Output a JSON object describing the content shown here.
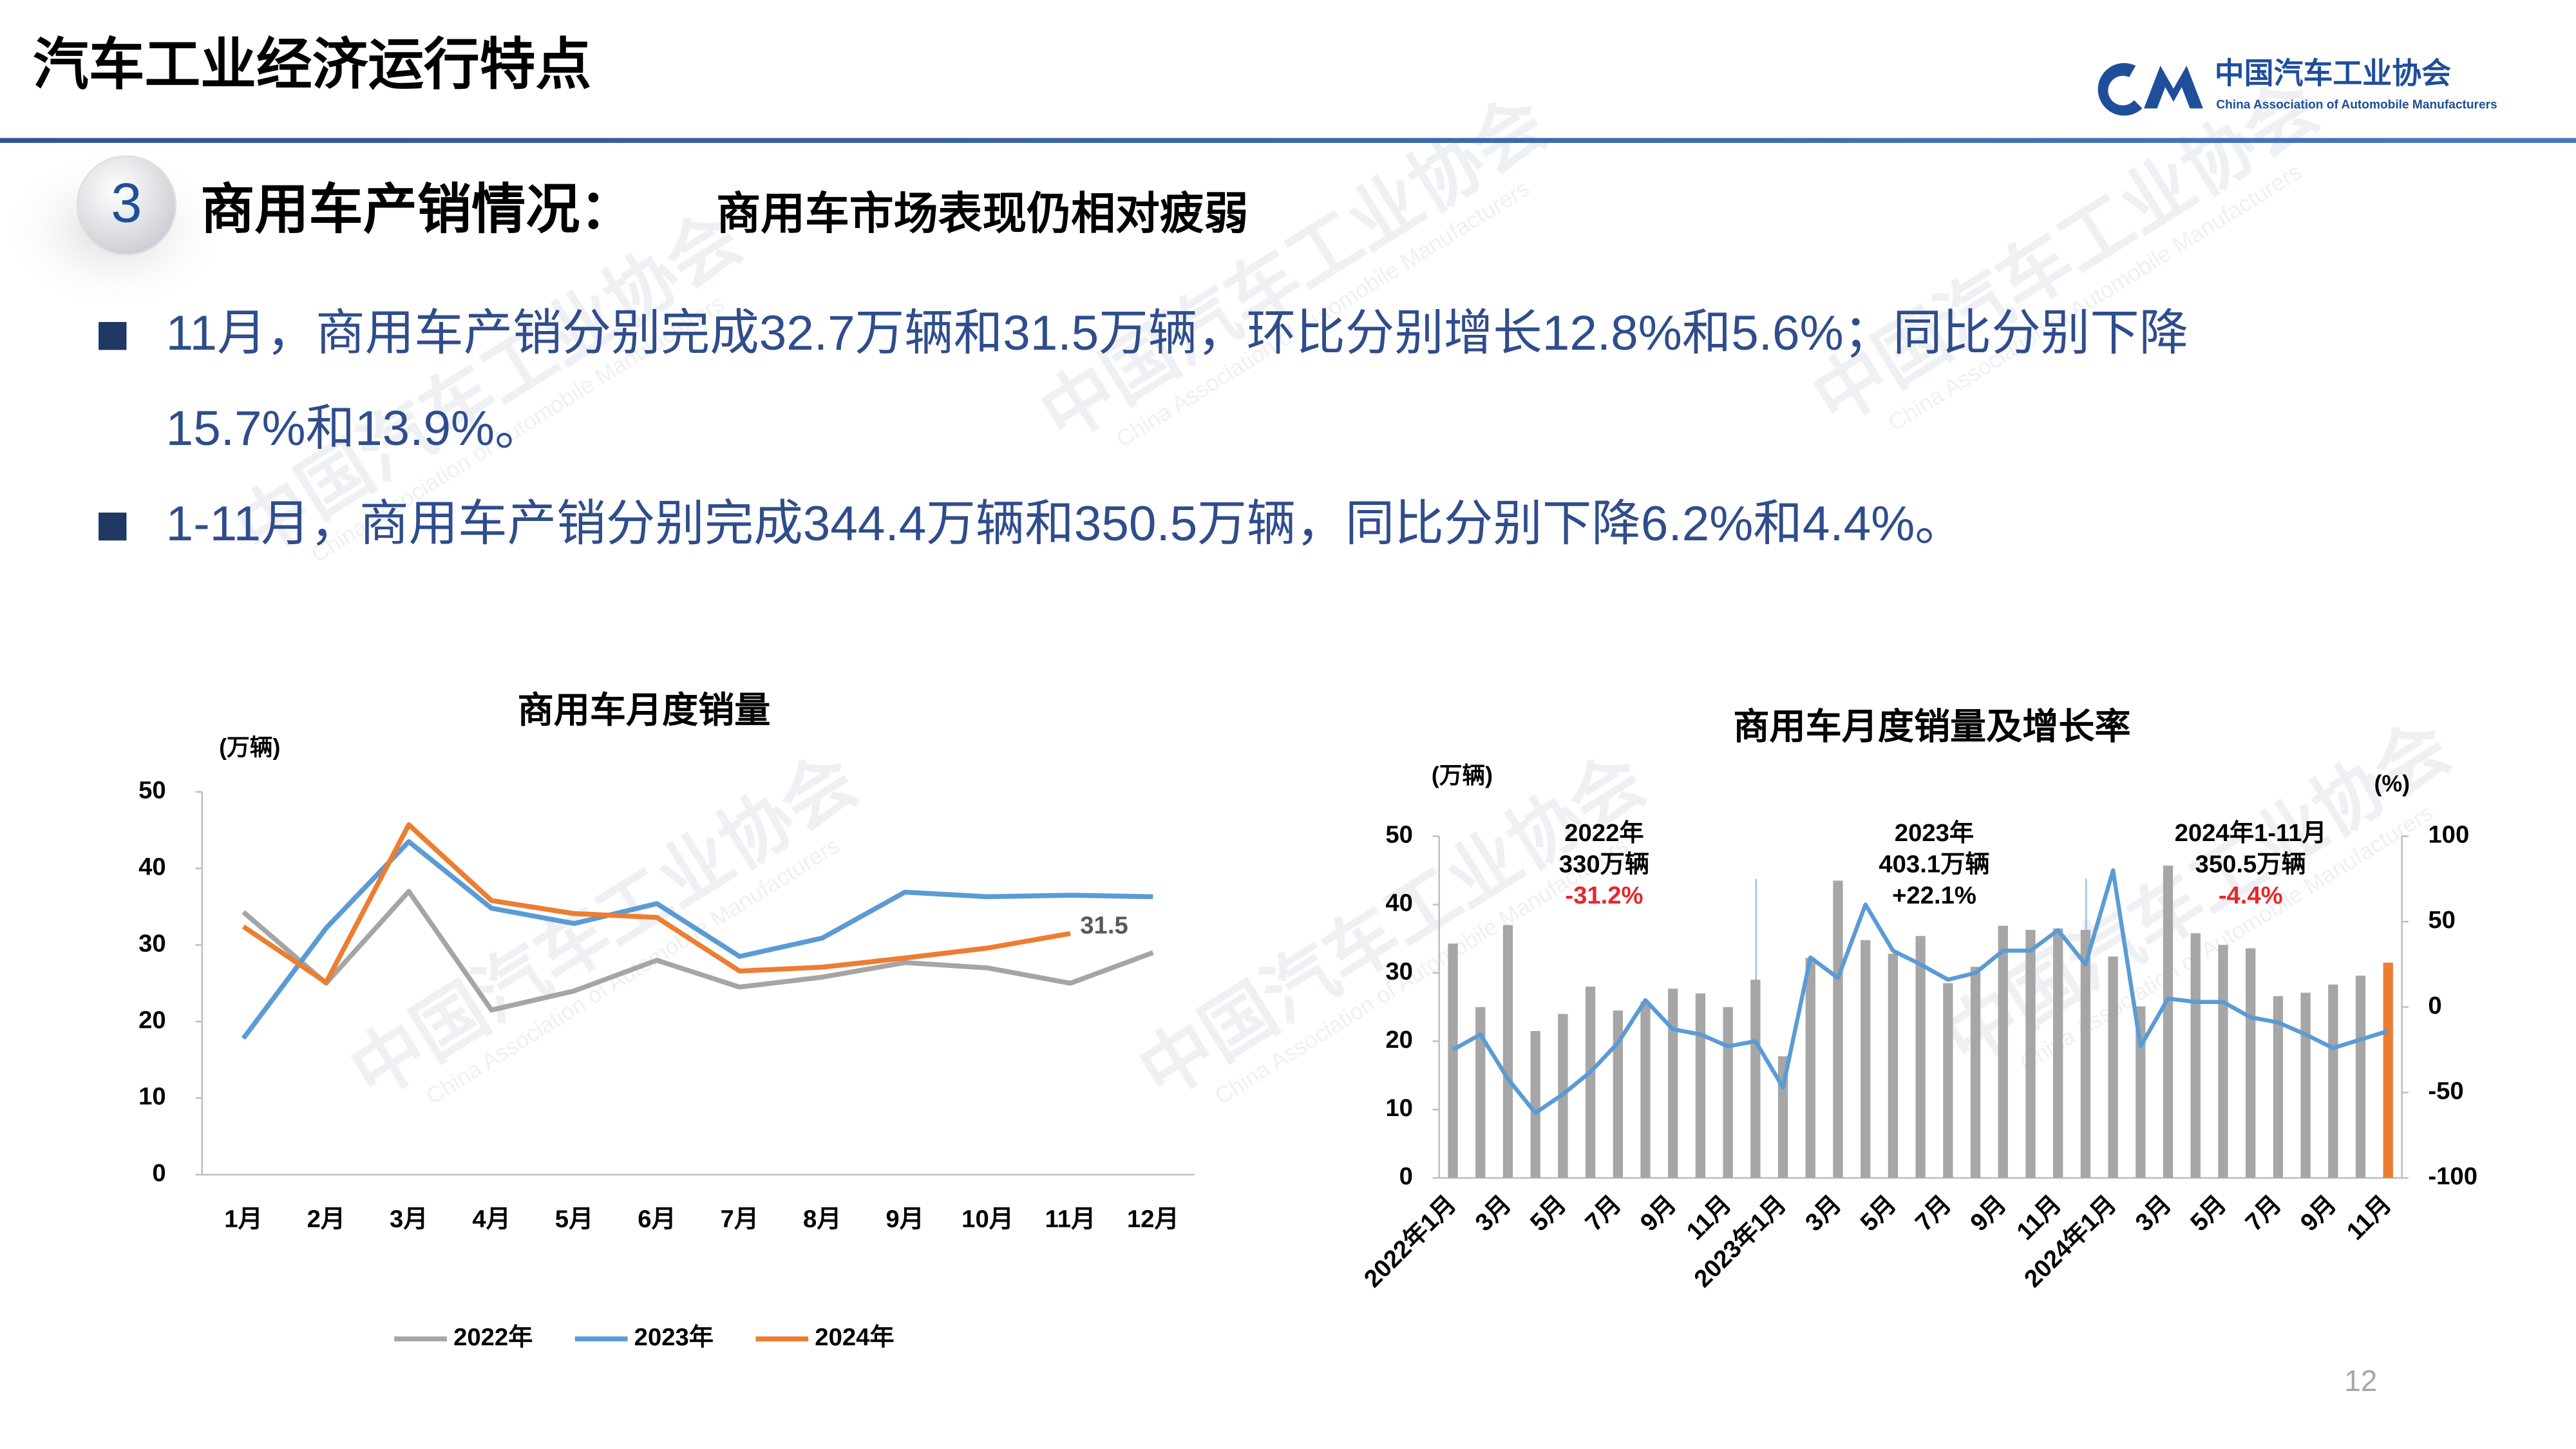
{
  "header": {
    "title": "汽车工业经济运行特点",
    "logo_cn": "中国汽车工业协会",
    "logo_en": "China Association of Automobile Manufacturers"
  },
  "section": {
    "number": "3",
    "title": "商用车产销情况：",
    "subtitle": "商用车市场表现仍相对疲弱"
  },
  "bullets": [
    {
      "lines": [
        "11月，商用车产销分别完成32.7万辆和31.5万辆，环比分别增长12.8%和5.6%；同比分别下降",
        "15.7%和13.9%。"
      ]
    },
    {
      "lines": [
        "1-11月，商用车产销分别完成344.4万辆和350.5万辆，同比分别下降6.2%和4.4%。"
      ]
    }
  ],
  "page_number": "12",
  "chart_data": [
    {
      "type": "line",
      "title": "商用车月度销量",
      "y_label": "(万辆)",
      "categories": [
        "1月",
        "2月",
        "3月",
        "4月",
        "5月",
        "6月",
        "7月",
        "8月",
        "9月",
        "10月",
        "11月",
        "12月"
      ],
      "series": [
        {
          "name": "2022年",
          "color": "#a5a5a5",
          "values": [
            34.3,
            25,
            37,
            21.5,
            24,
            28,
            24.5,
            25.8,
            27.7,
            27,
            25,
            29
          ]
        },
        {
          "name": "2023年",
          "color": "#5b9bd5",
          "values": [
            17.8,
            32.2,
            43.5,
            34.8,
            32.8,
            35.4,
            28.5,
            30.9,
            36.9,
            36.3,
            36.5,
            36.3
          ]
        },
        {
          "name": "2024年",
          "color": "#ed7d31",
          "label_last": true,
          "values": [
            32.4,
            25.1,
            45.7,
            35.8,
            34.1,
            33.6,
            26.6,
            27.1,
            28.3,
            29.6,
            31.5,
            null
          ]
        }
      ],
      "ylim": [
        0,
        50
      ],
      "yticks": [
        0,
        10,
        20,
        30,
        40,
        50
      ],
      "grid": false,
      "legend": "bottom"
    },
    {
      "type": "bar",
      "title": "商用车月度销量及增长率",
      "y_label": "(万辆)",
      "y2_label": "(%)",
      "categories": [
        "2022年1月",
        null,
        "3月",
        null,
        "5月",
        null,
        "7月",
        null,
        "9月",
        null,
        "11月",
        null,
        "2023年1月",
        null,
        "3月",
        null,
        "5月",
        null,
        "7月",
        null,
        "9月",
        null,
        "11月",
        null,
        "2024年1月",
        null,
        "3月",
        null,
        "5月",
        null,
        "7月",
        null,
        "9月",
        null,
        "11月"
      ],
      "series": [
        {
          "type": "bar",
          "colors": [
            "#a6a6a6",
            "#a6a6a6",
            "#a6a6a6",
            "#a6a6a6",
            "#a6a6a6",
            "#a6a6a6",
            "#a6a6a6",
            "#a6a6a6",
            "#a6a6a6",
            "#a6a6a6",
            "#a6a6a6",
            "#a6a6a6",
            "#a6a6a6",
            "#a6a6a6",
            "#a6a6a6",
            "#a6a6a6",
            "#a6a6a6",
            "#a6a6a6",
            "#a6a6a6",
            "#a6a6a6",
            "#a6a6a6",
            "#a6a6a6",
            "#a6a6a6",
            "#a6a6a6",
            "#a6a6a6",
            "#a6a6a6",
            "#a6a6a6",
            "#a6a6a6",
            "#a6a6a6",
            "#a6a6a6",
            "#a6a6a6",
            "#a6a6a6",
            "#a6a6a6",
            "#a6a6a6",
            "#ed7d31"
          ],
          "values": [
            34.3,
            25,
            37,
            21.5,
            24,
            28,
            24.5,
            25.8,
            27.7,
            27,
            25,
            29,
            17.8,
            32.2,
            43.5,
            34.8,
            32.8,
            35.4,
            28.5,
            30.9,
            36.9,
            36.3,
            36.5,
            36.3,
            32.4,
            25.1,
            45.7,
            35.8,
            34.1,
            33.6,
            26.6,
            27.1,
            28.3,
            29.6,
            31.5
          ]
        },
        {
          "type": "line",
          "axis": "y2",
          "color": "#5b9bd5",
          "values": [
            -25,
            -16,
            -42,
            -62,
            -51,
            -38,
            -21,
            4,
            -13,
            -16,
            -23,
            -20,
            -47,
            29,
            17,
            60,
            33,
            25,
            16,
            20,
            33,
            33,
            45,
            25,
            80,
            -23,
            5,
            3,
            3,
            -6,
            -9,
            -16,
            -24,
            -19,
            -14
          ]
        }
      ],
      "annotations": [
        {
          "lines": [
            "2022年",
            "330万辆",
            "-31.2%"
          ],
          "colors": [
            "#000000",
            "#000000",
            "#e8262b"
          ]
        },
        {
          "lines": [
            "2023年",
            "403.1万辆",
            "+22.1%"
          ],
          "colors": [
            "#000000",
            "#000000",
            "#000000"
          ]
        },
        {
          "lines": [
            "2024年1-11月",
            "350.5万辆",
            "-4.4%"
          ],
          "colors": [
            "#000000",
            "#000000",
            "#e8262b"
          ]
        }
      ],
      "ylim": [
        0,
        50
      ],
      "yticks": [
        0,
        10,
        20,
        30,
        40,
        50
      ],
      "y2lim": [
        -100,
        100
      ],
      "y2ticks": [
        -100,
        -50,
        0,
        50,
        100
      ],
      "grid": false
    }
  ]
}
